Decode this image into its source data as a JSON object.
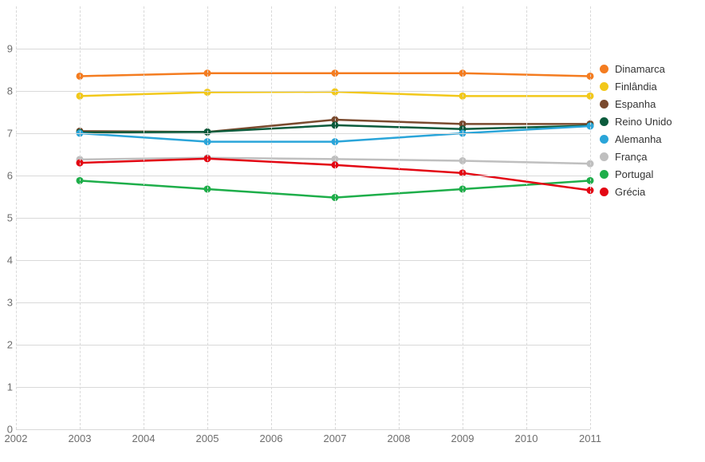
{
  "chart": {
    "type": "line",
    "background_color": "#ffffff",
    "grid_color": "#d9d9d9",
    "text_color": "#6d6d6d",
    "label_fontsize": 13,
    "marker_radius": 4.5,
    "line_width": 2.5,
    "ylim": [
      0,
      10
    ],
    "ytick_step": 1,
    "y_ticks": [
      0,
      1,
      2,
      3,
      4,
      5,
      6,
      7,
      8,
      9
    ],
    "x_categories": [
      "2002",
      "2003",
      "2004",
      "2005",
      "2006",
      "2007",
      "2008",
      "2009",
      "2010",
      "2011"
    ],
    "data_x": [
      2003,
      2005,
      2007,
      2009,
      2011
    ],
    "series": [
      {
        "name": "Dinamarca",
        "color": "#f47c20",
        "values": [
          8.35,
          8.42,
          8.42,
          8.42,
          8.35
        ]
      },
      {
        "name": "Finlândia",
        "color": "#f2c81a",
        "values": [
          7.88,
          7.97,
          7.98,
          7.88,
          7.88
        ]
      },
      {
        "name": "Espanha",
        "color": "#7a4a2e",
        "values": [
          7.05,
          7.03,
          7.32,
          7.22,
          7.22
        ]
      },
      {
        "name": "Reino Unido",
        "color": "#0b5b3c",
        "values": [
          7.02,
          7.03,
          7.19,
          7.1,
          7.18
        ]
      },
      {
        "name": "Alemanha",
        "color": "#2aa5d9",
        "values": [
          7.0,
          6.8,
          6.8,
          7.0,
          7.17
        ]
      },
      {
        "name": "França",
        "color": "#bfbfbf",
        "values": [
          6.38,
          6.42,
          6.39,
          6.35,
          6.28
        ]
      },
      {
        "name": "Portugal",
        "color": "#1eae4a",
        "values": [
          5.88,
          5.68,
          5.48,
          5.68,
          5.88
        ]
      },
      {
        "name": "Grécia",
        "color": "#e30613",
        "values": [
          6.3,
          6.4,
          6.25,
          6.06,
          5.65
        ]
      }
    ]
  }
}
